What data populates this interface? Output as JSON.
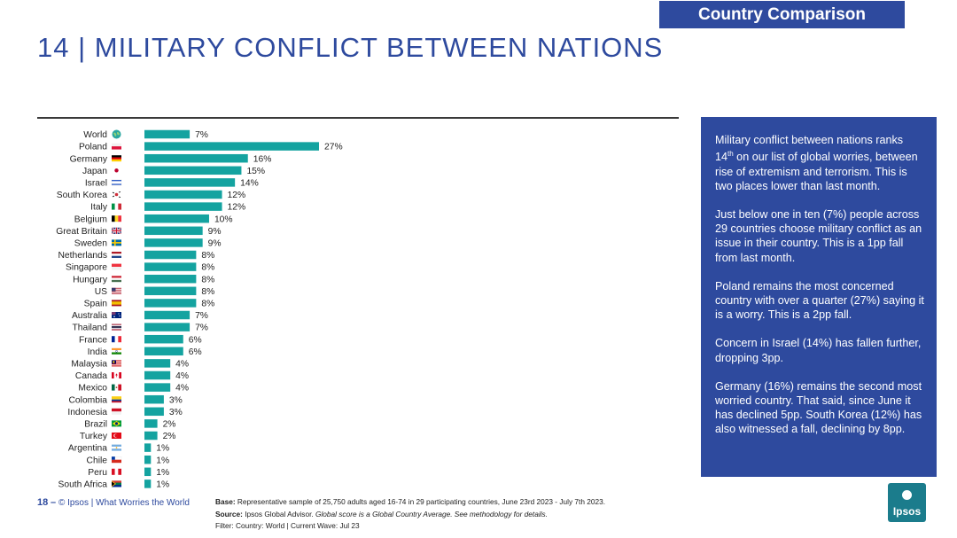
{
  "header": {
    "tag": "Country Comparison",
    "title": "14 | MILITARY CONFLICT BETWEEN NATIONS"
  },
  "panel": {
    "paragraphs": [
      "Military conflict between nations ranks 14th on our list of global worries, between rise of extremism and terrorism. This is two places lower than last month.",
      "Just below one in ten (7%) people across 29 countries choose military conflict as an issue in their country. This is a 1pp fall from last month.",
      "Poland remains the most concerned country with over a quarter (27%) saying it is a worry. This is a 2pp fall.",
      "Concern in Israel (14%) has fallen further, dropping 3pp.",
      "Germany (16%) remains the second most worried country. That said, since June it has declined 5pp. South Korea (12%) has also witnessed a fall, declining by 8pp."
    ]
  },
  "footer": {
    "page": "18",
    "dash": "–",
    "copyright": "© Ipsos | What Worries the World",
    "base_label": "Base:",
    "base_text": "Representative sample of 25,750 adults aged 16-74 in 29 participating countries, June 23rd 2023 - July 7th 2023.",
    "source_label": "Source:",
    "source_text": "Ipsos Global Advisor.",
    "source_italic": "Global score is a Global Country Average. See methodology for details.",
    "filter": "Filter: Country: World | Current Wave: Jul 23",
    "logo_text": "Ipsos"
  },
  "colors": {
    "bar": "#14a3a0",
    "brand": "#2e4a9e",
    "logo": "#1b7c8c"
  },
  "chart_data": {
    "type": "bar",
    "orientation": "horizontal",
    "categories": [
      "World",
      "Poland",
      "Germany",
      "Japan",
      "Israel",
      "South Korea",
      "Italy",
      "Belgium",
      "Great Britain",
      "Sweden",
      "Netherlands",
      "Singapore",
      "Hungary",
      "US",
      "Spain",
      "Australia",
      "Thailand",
      "France",
      "India",
      "Malaysia",
      "Canada",
      "Mexico",
      "Colombia",
      "Indonesia",
      "Brazil",
      "Turkey",
      "Argentina",
      "Chile",
      "Peru",
      "South Africa"
    ],
    "values": [
      7,
      27,
      16,
      15,
      14,
      12,
      12,
      10,
      9,
      9,
      8,
      8,
      8,
      8,
      8,
      7,
      7,
      6,
      6,
      4,
      4,
      4,
      3,
      3,
      2,
      2,
      1,
      1,
      1,
      1
    ],
    "value_labels": [
      "7%",
      "27%",
      "16%",
      "15%",
      "14%",
      "12%",
      "12%",
      "10%",
      "9%",
      "9%",
      "8%",
      "8%",
      "8%",
      "8%",
      "8%",
      "7%",
      "7%",
      "6%",
      "6%",
      "4%",
      "4%",
      "4%",
      "3%",
      "3%",
      "2%",
      "2%",
      "1%",
      "1%",
      "1%",
      "1%"
    ],
    "flag_icons": [
      "globe-icon",
      "poland-flag-icon",
      "germany-flag-icon",
      "japan-flag-icon",
      "israel-flag-icon",
      "south-korea-flag-icon",
      "italy-flag-icon",
      "belgium-flag-icon",
      "great-britain-flag-icon",
      "sweden-flag-icon",
      "netherlands-flag-icon",
      "singapore-flag-icon",
      "hungary-flag-icon",
      "us-flag-icon",
      "spain-flag-icon",
      "australia-flag-icon",
      "thailand-flag-icon",
      "france-flag-icon",
      "india-flag-icon",
      "malaysia-flag-icon",
      "canada-flag-icon",
      "mexico-flag-icon",
      "colombia-flag-icon",
      "indonesia-flag-icon",
      "brazil-flag-icon",
      "turkey-flag-icon",
      "argentina-flag-icon",
      "chile-flag-icon",
      "peru-flag-icon",
      "south-africa-flag-icon"
    ],
    "xlim": [
      0,
      27
    ],
    "grid": false,
    "legend": "none"
  }
}
